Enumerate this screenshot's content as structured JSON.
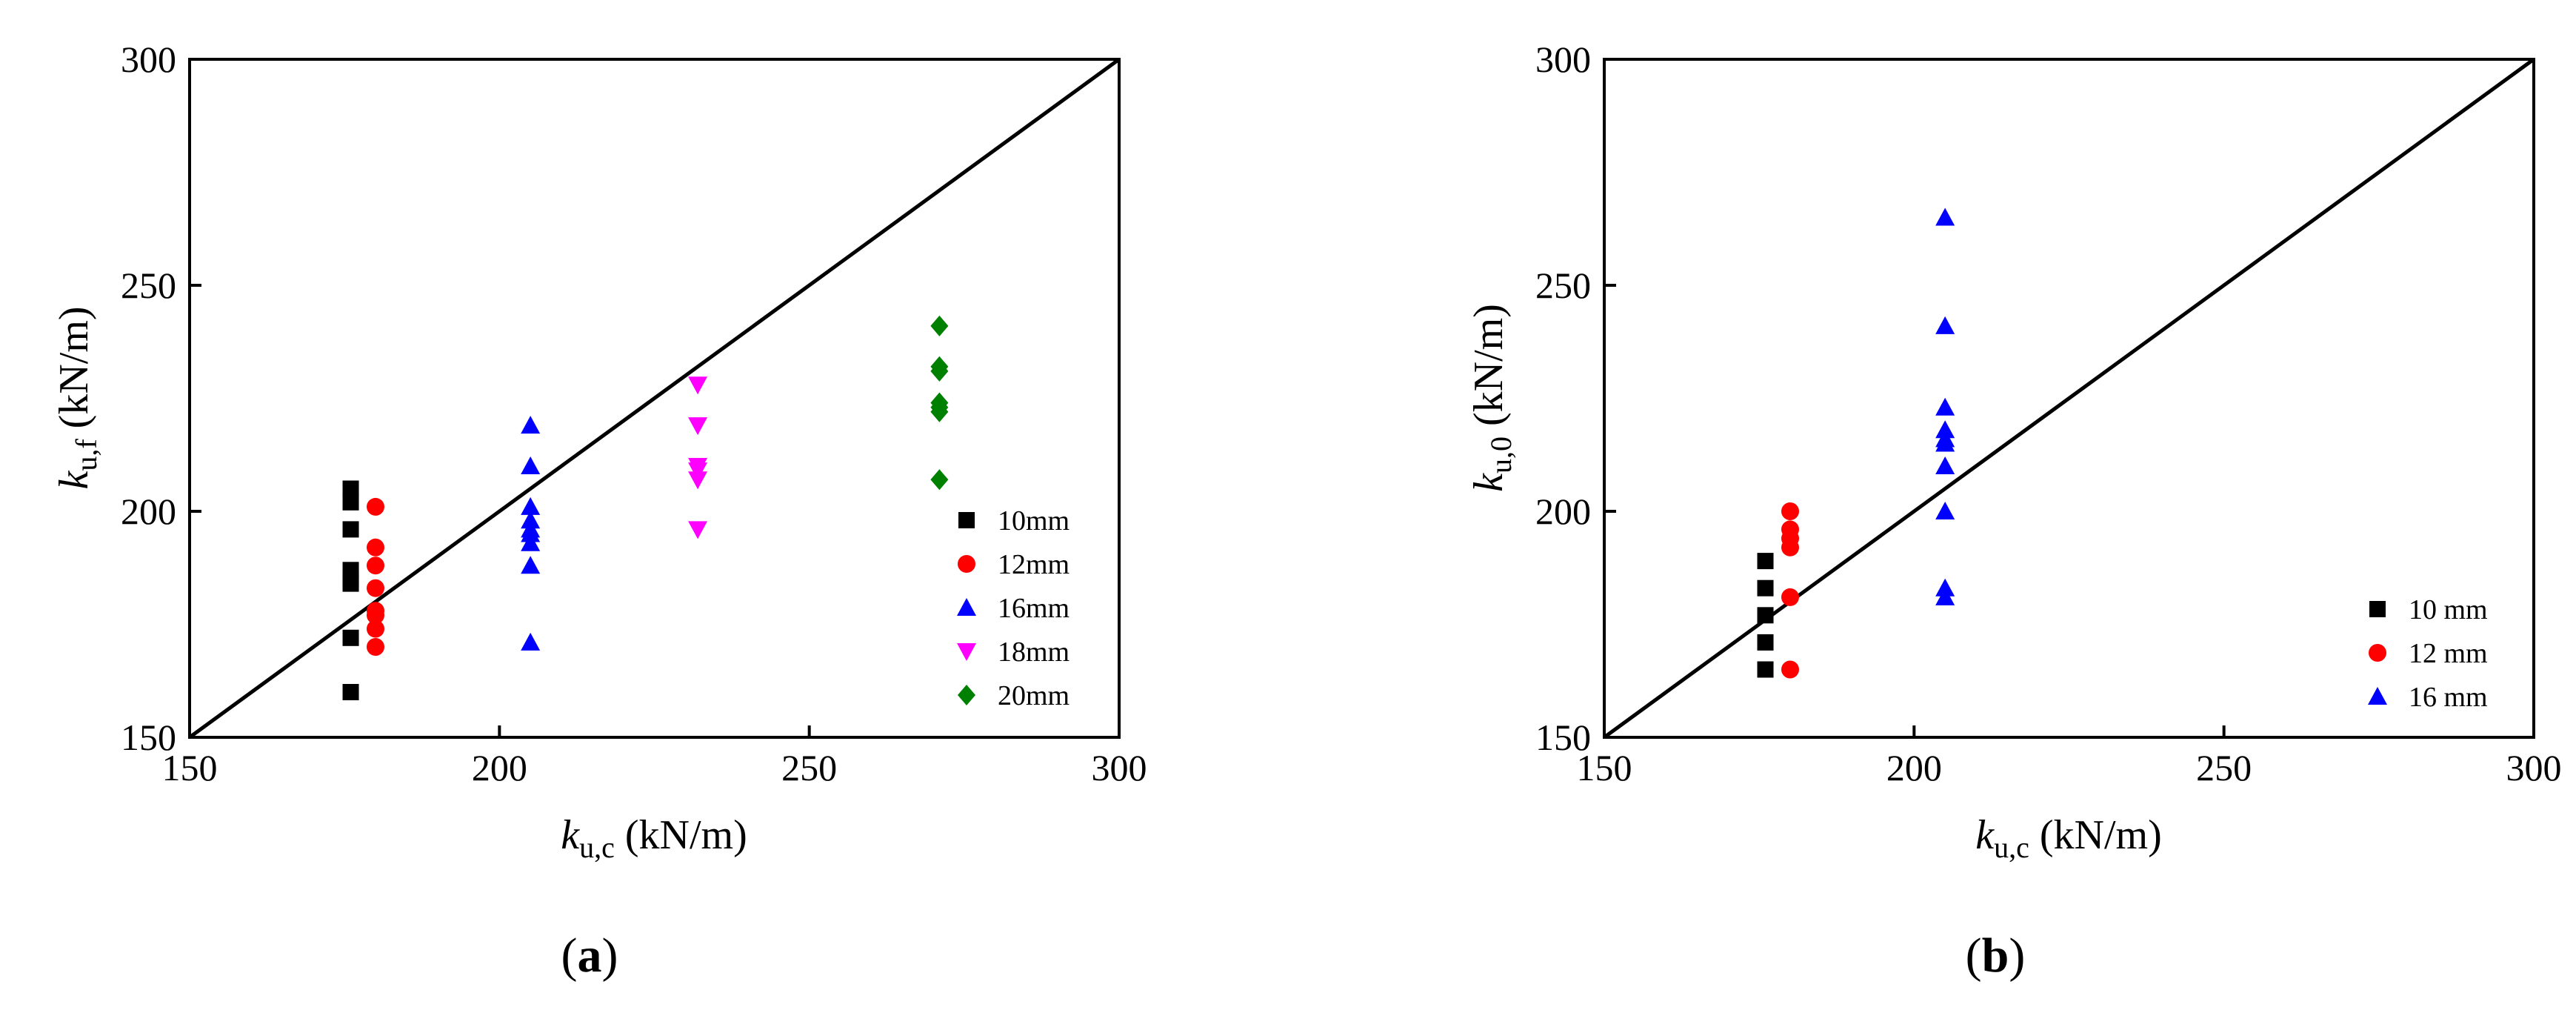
{
  "charts": [
    {
      "panel_label": {
        "open": "(",
        "letter": "a",
        "close": ")"
      },
      "xlabel": {
        "base": "k",
        "sub": "u,c",
        "unit": " (kN/m)"
      },
      "ylabel": {
        "base": "k",
        "sub": "u,f",
        "unit": " (kN/m)"
      },
      "legend_position": "right"
    },
    {
      "panel_label": {
        "open": "(",
        "letter": "b",
        "close": ")"
      },
      "xlabel": {
        "base": "k",
        "sub": "u,c",
        "unit": " (kN/m)"
      },
      "ylabel": {
        "base": "k",
        "sub": "u,0",
        "unit": " (kN/m)"
      },
      "legend_position": "bottom-right"
    }
  ],
  "chart_data": [
    {
      "type": "scatter",
      "xlim": [
        150,
        300
      ],
      "ylim": [
        150,
        300
      ],
      "xticks": [
        150,
        200,
        250,
        300
      ],
      "yticks": [
        150,
        200,
        250,
        300
      ],
      "grid": false,
      "reference_line": {
        "from": [
          150,
          150
        ],
        "to": [
          300,
          300
        ]
      },
      "series": [
        {
          "name": "10mm",
          "marker": "square",
          "color": "#000000",
          "x": [
            176,
            176,
            176,
            176,
            176,
            176,
            176,
            176
          ],
          "y": [
            205,
            202,
            196,
            187,
            185,
            184,
            172,
            160
          ]
        },
        {
          "name": "12mm",
          "marker": "circle",
          "color": "#ff0000",
          "x": [
            180,
            180,
            180,
            180,
            180,
            180,
            180,
            180
          ],
          "y": [
            201,
            192,
            188,
            183,
            178,
            177,
            174,
            170
          ]
        },
        {
          "name": "16mm",
          "marker": "triangle-up",
          "color": "#0000ff",
          "x": [
            205,
            205,
            205,
            205,
            205,
            205,
            205,
            205,
            205
          ],
          "y": [
            219,
            210,
            201,
            198,
            196,
            195,
            193,
            188,
            171
          ]
        },
        {
          "name": "18mm",
          "marker": "triangle-down",
          "color": "#ff00ff",
          "x": [
            232,
            232,
            232,
            232,
            232,
            232
          ],
          "y": [
            228,
            219,
            210,
            209,
            207,
            196
          ]
        },
        {
          "name": "20mm",
          "marker": "diamond",
          "color": "#008000",
          "x": [
            271,
            271,
            271,
            271,
            271,
            271,
            271
          ],
          "y": [
            241,
            232,
            231,
            224,
            223,
            222,
            207
          ]
        }
      ]
    },
    {
      "type": "scatter",
      "xlim": [
        150,
        300
      ],
      "ylim": [
        150,
        300
      ],
      "xticks": [
        150,
        200,
        250,
        300
      ],
      "yticks": [
        150,
        200,
        250,
        300
      ],
      "grid": false,
      "reference_line": {
        "from": [
          150,
          150
        ],
        "to": [
          300,
          300
        ]
      },
      "series": [
        {
          "name": "10 mm",
          "marker": "square",
          "color": "#000000",
          "x": [
            176,
            176,
            176,
            176,
            176
          ],
          "y": [
            189,
            183,
            177,
            171,
            165
          ]
        },
        {
          "name": "12 mm",
          "marker": "circle",
          "color": "#ff0000",
          "x": [
            180,
            180,
            180,
            180,
            180,
            180
          ],
          "y": [
            200,
            196,
            194,
            192,
            181,
            165
          ]
        },
        {
          "name": "16 mm",
          "marker": "triangle-up",
          "color": "#0000ff",
          "x": [
            205,
            205,
            205,
            205,
            205,
            205,
            205,
            205,
            205,
            205
          ],
          "y": [
            265,
            241,
            223,
            218,
            216,
            215,
            210,
            200,
            183,
            181
          ]
        }
      ]
    }
  ]
}
